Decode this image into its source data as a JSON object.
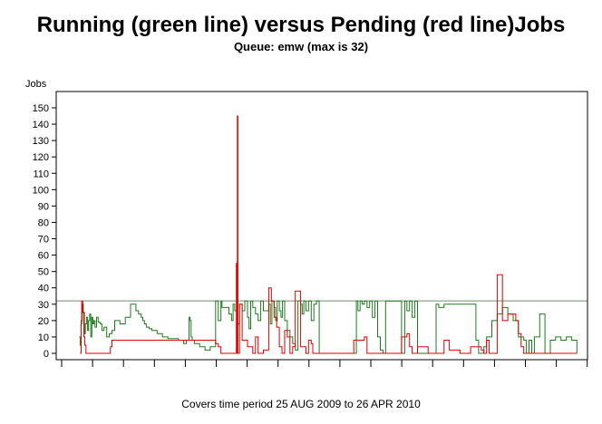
{
  "chart_data": {
    "type": "line",
    "title": "Running (green line) versus Pending (red line)Jobs",
    "subtitle": "Queue: emw (max is 32)",
    "ylabel": "Jobs",
    "footnote": "Covers time period 25 AUG 2009 to 26 APR 2010",
    "ylim": [
      0,
      150
    ],
    "yticks": [
      0,
      10,
      20,
      30,
      40,
      50,
      60,
      70,
      80,
      90,
      100,
      110,
      120,
      130,
      140,
      150
    ],
    "xlim": [
      0,
      100
    ],
    "grid": false,
    "reference_line": {
      "value": 32,
      "color": "#6b8e6b"
    },
    "colors": {
      "running": "#1e7b1e",
      "pending": "#e00000"
    },
    "series": [
      {
        "key": "running",
        "color": "#1e7b1e",
        "x": [
          4.3,
          4.5,
          4.7,
          4.9,
          5.1,
          5.3,
          5.5,
          5.7,
          5.9,
          6.1,
          6.3,
          6.5,
          6.7,
          6.9,
          7.1,
          7.3,
          7.6,
          7.9,
          8.3,
          8.6,
          9.0,
          9.5,
          10.0,
          10.5,
          11.0,
          12.0,
          13.0,
          14.0,
          15.0,
          15.5,
          16.0,
          16.3,
          16.6,
          17.0,
          17.5,
          18.0,
          19.0,
          20.0,
          21.0,
          22.0,
          23.0,
          24.0,
          24.5,
          25.0,
          25.2,
          25.4,
          25.6,
          26.0,
          27.0,
          28.0,
          29.0,
          30.0,
          30.5,
          31.0,
          31.2,
          32.5,
          33.0,
          33.3,
          33.6,
          34.0,
          34.5,
          35.0,
          35.5,
          36.0,
          36.3,
          36.6,
          37.0,
          37.5,
          38.0,
          38.5,
          39.0,
          40.0,
          40.3,
          40.6,
          41.0,
          41.3,
          41.6,
          42.0,
          42.3,
          42.6,
          43.0,
          43.5,
          44.0,
          44.5,
          45.0,
          45.5,
          46.0,
          46.3,
          46.6,
          47.0,
          47.5,
          48.0,
          48.5,
          49.0,
          49.5,
          50.0,
          51.0,
          53.0,
          55.0,
          56.5,
          56.8,
          57.2,
          57.6,
          58.0,
          58.5,
          59.0,
          59.5,
          60.0,
          60.5,
          61.0,
          61.5,
          62.0,
          64.0,
          65.0,
          65.3,
          65.6,
          66.0,
          66.5,
          67.0,
          67.5,
          68.0,
          71.0,
          71.5,
          72.0,
          73.0,
          75.0,
          76.0,
          77.0,
          78.0,
          78.5,
          79.0,
          79.5,
          80.0,
          80.5,
          81.0,
          82.0,
          83.0,
          84.0,
          85.0,
          86.0,
          87.0,
          88.0,
          88.5,
          89.0,
          89.5,
          90.0,
          91.0,
          92.0,
          93.0,
          94.0,
          95.0,
          96.0,
          97.0,
          98.0
        ],
        "values": [
          10,
          5,
          20,
          30,
          25,
          12,
          18,
          22,
          14,
          20,
          24,
          10,
          22,
          18,
          20,
          16,
          22,
          19,
          18,
          14,
          16,
          10,
          12,
          14,
          20,
          18,
          22,
          30,
          26,
          24,
          22,
          20,
          18,
          16,
          15,
          14,
          12,
          10,
          9,
          9,
          8,
          6,
          8,
          22,
          20,
          10,
          8,
          6,
          4,
          2,
          4,
          32,
          20,
          32,
          28,
          24,
          20,
          30,
          26,
          18,
          30,
          26,
          32,
          22,
          15,
          32,
          28,
          24,
          20,
          32,
          26,
          30,
          18,
          32,
          28,
          20,
          32,
          26,
          22,
          32,
          20,
          14,
          10,
          6,
          2,
          32,
          30,
          24,
          32,
          26,
          32,
          20,
          30,
          32,
          0,
          0,
          0,
          0,
          0,
          32,
          26,
          32,
          30,
          32,
          28,
          32,
          22,
          32,
          10,
          2,
          0,
          32,
          32,
          0,
          0,
          32,
          26,
          32,
          22,
          32,
          0,
          0,
          30,
          28,
          30,
          30,
          30,
          30,
          30,
          30,
          8,
          0,
          0,
          4,
          10,
          20,
          24,
          28,
          24,
          20,
          10,
          8,
          0,
          8,
          0,
          10,
          24,
          0,
          8,
          10,
          8,
          10,
          8,
          0
        ]
      },
      {
        "key": "pending",
        "color": "#e00000",
        "x": [
          4.5,
          4.7,
          4.8,
          5.0,
          5.2,
          5.4,
          5.6,
          6.0,
          8.0,
          10.0,
          10.2,
          10.5,
          12.0,
          14.0,
          15.0,
          20.0,
          25.0,
          30.0,
          30.5,
          31.0,
          33.0,
          33.8,
          33.9,
          34.0,
          34.1,
          34.2,
          34.5,
          35.0,
          36.0,
          37.0,
          37.5,
          38.0,
          39.0,
          40.0,
          40.5,
          41.0,
          41.5,
          42.0,
          42.5,
          43.0,
          43.5,
          44.0,
          44.5,
          45.0,
          46.0,
          47.0,
          47.5,
          48.0,
          48.3,
          48.6,
          49.0,
          50.0,
          52.0,
          54.0,
          56.0,
          58.0,
          58.5,
          59.0,
          59.5,
          60.0,
          62.0,
          64.0,
          65.0,
          66.0,
          66.5,
          67.0,
          67.5,
          68.0,
          70.0,
          72.0,
          73.0,
          74.0,
          76.0,
          78.0,
          80.0,
          80.5,
          81.0,
          81.5,
          82.0,
          83.0,
          84.0,
          85.0,
          86.0,
          86.5,
          87.0,
          87.5,
          88.0,
          88.5,
          89.0,
          89.5,
          90.0,
          92.0,
          94.0,
          96.0,
          98.0
        ],
        "values": [
          0,
          18,
          32,
          25,
          10,
          5,
          0,
          0,
          0,
          0,
          4,
          8,
          8,
          8,
          8,
          8,
          8,
          6,
          4,
          0,
          0,
          0,
          55,
          0,
          145,
          0,
          30,
          8,
          4,
          0,
          10,
          0,
          2,
          40,
          32,
          22,
          16,
          4,
          0,
          14,
          10,
          0,
          4,
          38,
          4,
          0,
          8,
          6,
          0,
          0,
          0,
          0,
          0,
          0,
          8,
          10,
          0,
          0,
          0,
          0,
          0,
          0,
          10,
          12,
          4,
          0,
          0,
          4,
          0,
          0,
          8,
          2,
          0,
          4,
          2,
          0,
          8,
          0,
          0,
          48,
          20,
          24,
          24,
          20,
          12,
          4,
          0,
          0,
          0,
          0,
          0,
          0,
          0,
          0,
          0
        ]
      }
    ]
  }
}
